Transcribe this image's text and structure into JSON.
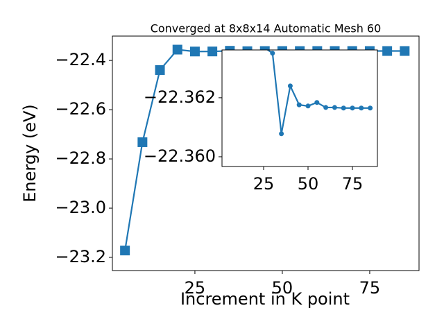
{
  "chart_data": [
    {
      "type": "line",
      "title": "Converged at 8x8x14 Automatic Mesh 60",
      "xlabel": "Increment in K point",
      "ylabel": "Energy (eV)",
      "x": [
        5,
        10,
        15,
        20,
        25,
        30,
        35,
        40,
        45,
        50,
        55,
        60,
        65,
        70,
        75,
        80,
        85
      ],
      "series": [
        {
          "name": "Energy",
          "color": "#1f77b4",
          "marker": "square",
          "values": [
            -23.172,
            -22.732,
            -22.439,
            -22.356,
            -22.36372,
            -22.36351,
            -22.36078,
            -22.3624,
            -22.36176,
            -22.36172,
            -22.36184,
            -22.36167,
            -22.36167,
            -22.36165,
            -22.36165,
            -22.36165,
            -22.36165
          ]
        }
      ],
      "xlim": [
        1.4,
        89.1
      ],
      "ylim": [
        -23.2535,
        -22.301
      ],
      "xticks": [
        25,
        50,
        75
      ],
      "yticks": [
        {
          "value": -22.4,
          "label": "−22.4"
        },
        {
          "value": -22.6,
          "label": "−22.6"
        },
        {
          "value": -22.8,
          "label": "−22.8"
        },
        {
          "value": -23.0,
          "label": "−23.0"
        },
        {
          "value": -23.2,
          "label": "−23.2"
        }
      ]
    },
    {
      "type": "line",
      "x": [
        25,
        30,
        35,
        40,
        45,
        50,
        55,
        60,
        65,
        70,
        75,
        80,
        85
      ],
      "series": [
        {
          "name": "Energy",
          "color": "#1f77b4",
          "marker": "circle",
          "values": [
            -22.36372,
            -22.36351,
            -22.36078,
            -22.3624,
            -22.36176,
            -22.36172,
            -22.36184,
            -22.36167,
            -22.36167,
            -22.36165,
            -22.36165,
            -22.36165,
            -22.36165
          ]
        }
      ],
      "xlim": [
        1.56,
        89.06
      ],
      "ylim": [
        -22.35967,
        -22.36362
      ],
      "xticks": [
        25,
        50,
        75
      ],
      "yticks": [
        {
          "value": -22.362,
          "label": "−22.362"
        },
        {
          "value": -22.36,
          "label": "−22.360"
        }
      ]
    }
  ]
}
